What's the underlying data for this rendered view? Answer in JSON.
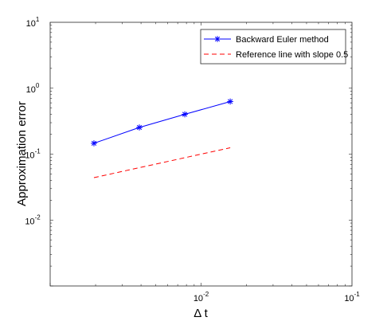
{
  "chart_data": {
    "type": "line",
    "title": "",
    "xlabel": "Δ t",
    "ylabel": "Approximation error",
    "xscale": "log",
    "yscale": "log",
    "xlim": [
      0.001,
      0.1
    ],
    "ylim": [
      0.001,
      10
    ],
    "x_ticks": [
      {
        "value": 0.01,
        "base": "10",
        "exp": "-2"
      },
      {
        "value": 0.1,
        "base": "10",
        "exp": "-1"
      }
    ],
    "y_ticks": [
      {
        "value": 0.01,
        "base": "10",
        "exp": "-2"
      },
      {
        "value": 0.1,
        "base": "10",
        "exp": "-1"
      },
      {
        "value": 1,
        "base": "10",
        "exp": "0"
      },
      {
        "value": 10,
        "base": "10",
        "exp": "1"
      }
    ],
    "grid": false,
    "legend_position": "top-right",
    "series": [
      {
        "name": "Backward Euler method",
        "color": "#0000ff",
        "line_style": "solid",
        "marker": "asterisk",
        "x": [
          0.00195,
          0.0039,
          0.0078,
          0.0156
        ],
        "y": [
          0.146,
          0.254,
          0.402,
          0.628
        ]
      },
      {
        "name": "Reference line with slope 0.5",
        "color": "#ff0000",
        "line_style": "dashed",
        "marker": "none",
        "x": [
          0.00195,
          0.0156
        ],
        "y": [
          0.044,
          0.125
        ]
      }
    ]
  }
}
